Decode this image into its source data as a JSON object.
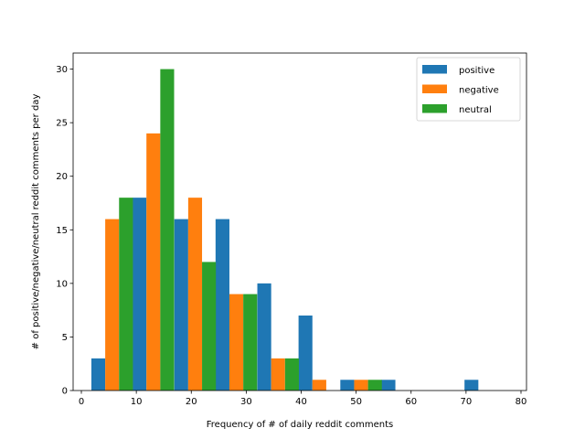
{
  "chart_data": {
    "type": "bar",
    "xlabel": "Frequency of # of daily reddit comments",
    "ylabel": "# of positive/negative/neutral reddit comments per day",
    "xlim": [
      -1.5,
      81
    ],
    "ylim": [
      0,
      31.5
    ],
    "xticks": [
      "0",
      "10",
      "20",
      "30",
      "40",
      "50",
      "60",
      "70",
      "80"
    ],
    "yticks": [
      "0",
      "5",
      "10",
      "15",
      "20",
      "25",
      "30"
    ],
    "bin_centers": [
      5.6,
      13.1,
      20.7,
      28.2,
      35.8,
      43.3,
      50.9,
      58.4,
      65.9,
      73.5
    ],
    "bar_width": 2.52,
    "legend_position": "upper right",
    "series": [
      {
        "name": "positive",
        "color": "#1f77b4",
        "values": [
          3,
          18,
          16,
          16,
          10,
          7,
          1,
          1,
          0,
          1
        ]
      },
      {
        "name": "negative",
        "color": "#ff7f0e",
        "values": [
          16,
          24,
          18,
          9,
          3,
          1,
          1,
          0,
          0,
          0
        ]
      },
      {
        "name": "neutral",
        "color": "#2ca02c",
        "values": [
          18,
          30,
          12,
          9,
          3,
          0,
          1,
          0,
          0,
          0
        ]
      }
    ]
  }
}
